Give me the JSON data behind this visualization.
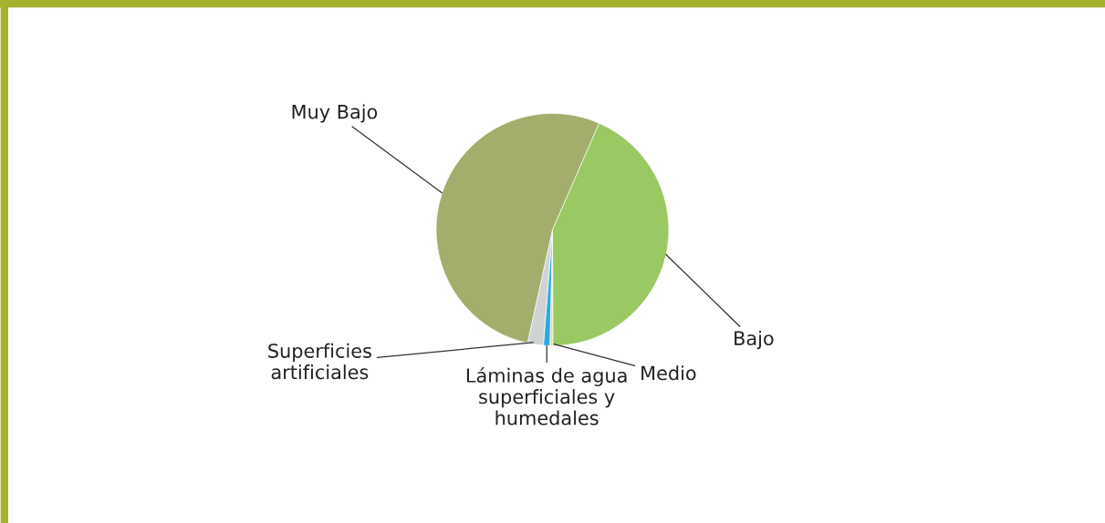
{
  "chart_data": {
    "type": "pie",
    "categories": [
      "Bajo",
      "Medio",
      "Láminas de agua\nsuperficiales y\nhumedales",
      "Superficies\nartificiales",
      "Muy Bajo"
    ],
    "values": [
      43.4,
      0.4,
      0.9,
      2.2,
      53.1
    ],
    "colors": [
      "#9ac963",
      "#eed99a",
      "#29aae1",
      "#d0d3d4",
      "#a3ad6c"
    ],
    "legend": false
  }
}
